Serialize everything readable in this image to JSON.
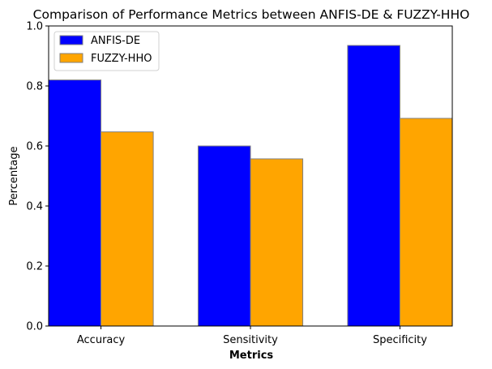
{
  "chart_data": {
    "type": "bar",
    "title": "Comparison of Performance Metrics between ANFIS-DE & FUZZY-HHO",
    "xlabel": "Metrics",
    "ylabel": "Percentage",
    "categories": [
      "Accuracy",
      "Sensitivity",
      "Specificity"
    ],
    "series": [
      {
        "name": "ANFIS-DE",
        "values": [
          0.82,
          0.6,
          0.935
        ],
        "color": "#0000ff"
      },
      {
        "name": "FUZZY-HHO",
        "values": [
          0.647,
          0.557,
          0.692
        ],
        "color": "#ffa500"
      }
    ],
    "ylim": [
      0,
      1.0
    ],
    "yticks": [
      "0.0",
      "0.2",
      "0.4",
      "0.6",
      "0.8",
      "1.0"
    ],
    "grid": false,
    "legend_position": "top-left",
    "bar_edge_color": "#808080"
  }
}
